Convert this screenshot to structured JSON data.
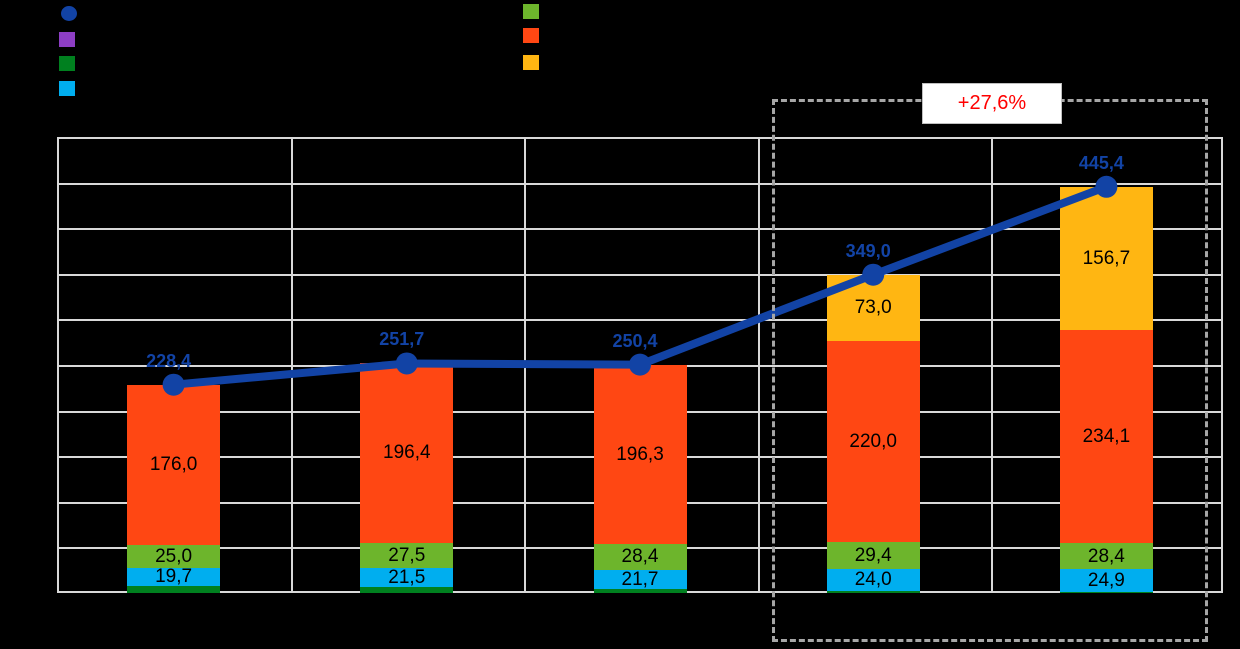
{
  "page": {
    "background": "#000000"
  },
  "legend": {
    "left_column": [
      {
        "name": "total-line-marker",
        "shape": "circle",
        "color": "#1243A5"
      },
      {
        "name": "purple-series-marker",
        "shape": "square",
        "color": "#8D3EC4"
      },
      {
        "name": "darkgreen-series-marker",
        "shape": "square",
        "color": "#00801F"
      },
      {
        "name": "cyan-series-marker",
        "shape": "square",
        "color": "#00AEEF"
      }
    ],
    "right_column": [
      {
        "name": "green-series-marker",
        "shape": "square",
        "color": "#6DB52C"
      },
      {
        "name": "orange-series-marker",
        "shape": "square",
        "color": "#FF4713"
      },
      {
        "name": "yellow-series-marker",
        "shape": "square",
        "color": "#FFB612"
      }
    ]
  },
  "annotation": {
    "label": "+27,6%",
    "text_color": "#FF0000",
    "box_color": "#FFFFFF",
    "highlighted_bars": [
      3,
      4
    ]
  },
  "chart_data": {
    "type": "stacked-bar-with-line",
    "categories": [
      "",
      "",
      "",
      "",
      ""
    ],
    "ylim": [
      0,
      500
    ],
    "gridline_step": 50,
    "grid": true,
    "legend_position": "top",
    "series": [
      {
        "name": "darkgreen-base",
        "color": "#00801F",
        "values": [
          7.7,
          6.3,
          4.0,
          2.6,
          1.3
        ],
        "labels": [
          "",
          "",
          "",
          "",
          ""
        ]
      },
      {
        "name": "cyan",
        "color": "#00AEEF",
        "values": [
          19.7,
          21.5,
          21.7,
          24.0,
          24.9
        ],
        "labels": [
          "19,7",
          "21,5",
          "21,7",
          "24,0",
          "24,9"
        ]
      },
      {
        "name": "green",
        "color": "#6DB52C",
        "values": [
          25.0,
          27.5,
          28.4,
          29.4,
          28.4
        ],
        "labels": [
          "25,0",
          "27,5",
          "28,4",
          "29,4",
          "28,4"
        ]
      },
      {
        "name": "orange",
        "color": "#FF4713",
        "values": [
          176.0,
          196.4,
          196.3,
          220.0,
          234.1
        ],
        "labels": [
          "176,0",
          "196,4",
          "196,3",
          "220,0",
          "234,1"
        ]
      },
      {
        "name": "yellow",
        "color": "#FFB612",
        "values": [
          0,
          0,
          0,
          73.0,
          156.7
        ],
        "labels": [
          "",
          "",
          "",
          "73,0",
          "156,7"
        ]
      }
    ],
    "line_series": {
      "name": "total",
      "color": "#1243A5",
      "values": [
        228.4,
        251.7,
        250.4,
        349.0,
        445.4
      ],
      "labels": [
        "228,4",
        "251,7",
        "250,4",
        "349,0",
        "445,4"
      ]
    }
  }
}
